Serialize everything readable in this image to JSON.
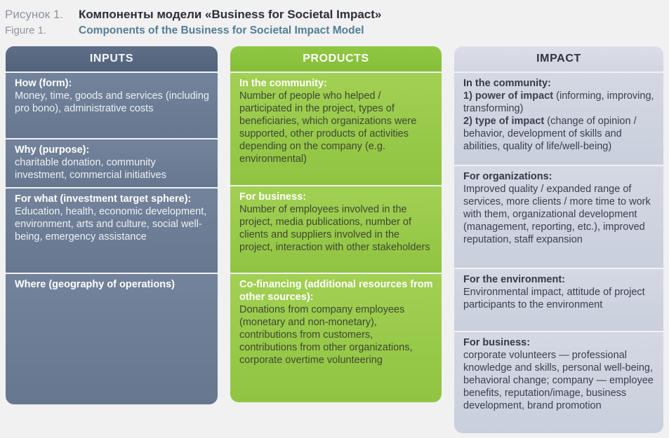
{
  "caption": {
    "label_ru": "Рисунок 1.",
    "title_ru": "Компоненты модели «Business for Societal Impact»",
    "label_en": "Figure 1.",
    "title_en": "Components of the Business for Societal Impact Model"
  },
  "palette": {
    "inputs_header": "#57687f",
    "inputs_cell": "#6d7e96",
    "products_header": "#8cc63e",
    "products_cell": "#9acb4a",
    "impact_header": "#d6d9e4",
    "impact_cell": "#ced3df",
    "page_background": "#f1f1f2"
  },
  "columns": [
    {
      "id": "inputs",
      "header": "INPUTS",
      "cells": [
        {
          "name": "cell-inputs-how",
          "heading": "How (form):",
          "body": "Money, time, goods and services (including pro bono), administrative costs"
        },
        {
          "name": "cell-inputs-why",
          "heading": "Why (purpose):",
          "body": "charitable donation, community investment, commercial initiatives"
        },
        {
          "name": "cell-inputs-for-what",
          "heading": "For what (investment target sphere):",
          "body": "Education, health, economic development, environment, arts and culture, social well-being, emergency assistance"
        },
        {
          "name": "cell-inputs-where",
          "heading": "Where (geography of operations)",
          "body": ""
        }
      ]
    },
    {
      "id": "products",
      "header": "PRODUCTS",
      "cells": [
        {
          "name": "cell-products-community",
          "heading": "In the community:",
          "body": "Number of people who helped / participated in the project, types of beneficiaries, which organizations were supported, other products of activities depending on the company (e.g. environmental)"
        },
        {
          "name": "cell-products-business",
          "heading": "For business:",
          "body": "Number of employees involved in the project, media publications, number of clients and suppliers involved in the project, interaction with other stakeholders"
        },
        {
          "name": "cell-products-cofinancing",
          "heading": "Co-financing (additional resources from other sources):",
          "body": "Donations from company employees (monetary and non-monetary), contributions from customers, contributions from other organizations, corporate overtime volunteering"
        }
      ]
    },
    {
      "id": "impact",
      "header": "IMPACT",
      "cells": [
        {
          "name": "cell-impact-community",
          "heading": "In the community:",
          "segments": [
            {
              "text": "1) power of impact",
              "bold": true
            },
            {
              "text": " (informing, improving, transforming)\n",
              "bold": false
            },
            {
              "text": "2) type of impact",
              "bold": true
            },
            {
              "text": " (change of opinion / behavior, development of skills and abilities, quality of life/well-being)",
              "bold": false
            }
          ]
        },
        {
          "name": "cell-impact-organizations",
          "heading": "For organizations:",
          "body": "Improved quality / expanded range of services, more clients / more time to work with them, organizational development (management, reporting, etc.), improved reputation, staff expansion"
        },
        {
          "name": "cell-impact-environment",
          "heading": "For the environment:",
          "body": "Environmental impact, attitude of project participants to the environment"
        },
        {
          "name": "cell-impact-business",
          "heading": "For business:",
          "body": "corporate volunteers — professional knowledge and skills, personal well-being, behavioral change; company — employee benefits, reputation/image, business development, brand promotion"
        }
      ]
    }
  ]
}
